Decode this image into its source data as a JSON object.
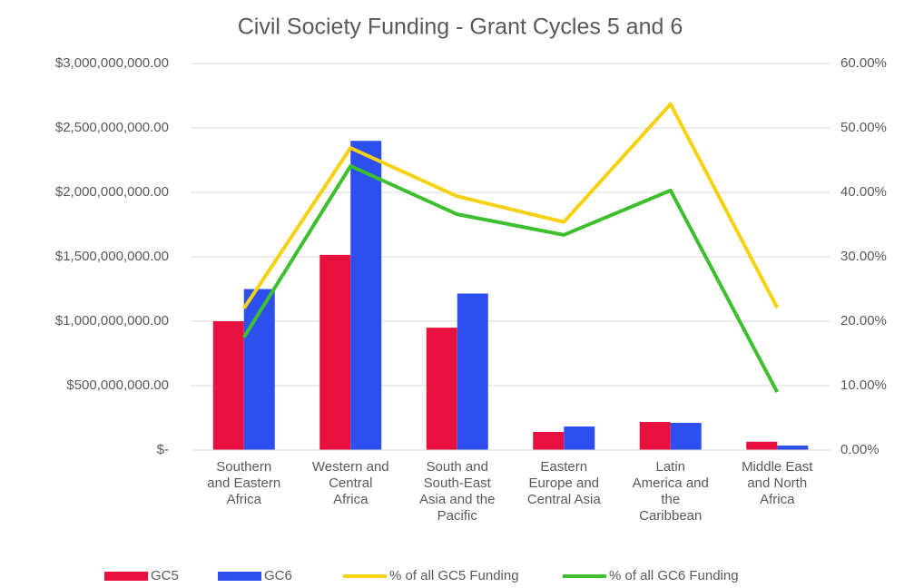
{
  "chart_data": {
    "type": "bar_line",
    "title": "Civil Society Funding - Grant Cycles 5 and 6",
    "categories": [
      "Southern and Eastern Africa",
      "Western and Central Africa",
      "South and South-East Asia and the Pacific",
      "Eastern Europe and Central Asia",
      "Latin America and the Caribbean",
      "Middle East and North Africa"
    ],
    "series": [
      {
        "name": "GC5",
        "type": "bar",
        "color": "#e8103f",
        "values": [
          1000000000,
          1515000000,
          950000000,
          141000000,
          218000000,
          65000000
        ]
      },
      {
        "name": "GC6",
        "type": "bar",
        "color": "#2e4ff0",
        "values": [
          1250000000,
          2400000000,
          1215000000,
          183000000,
          211000000,
          35000000
        ]
      },
      {
        "name": "% of all GC5 Funding",
        "type": "line",
        "axis": "y2",
        "color": "#f5d10f",
        "values": [
          22.0,
          46.9,
          39.4,
          35.4,
          53.7,
          22.1
        ]
      },
      {
        "name": "% of all GC6 Funding",
        "type": "line",
        "axis": "y2",
        "color": "#3dbf2f",
        "values": [
          17.5,
          44.1,
          36.6,
          33.4,
          40.3,
          9.0
        ]
      }
    ],
    "ylim": [
      0,
      3000000000
    ],
    "yticks": [
      {
        "value": 0,
        "label": "$-"
      },
      {
        "value": 500000000,
        "label": "$500,000,000.00"
      },
      {
        "value": 1000000000,
        "label": "$1,000,000,000.00"
      },
      {
        "value": 1500000000,
        "label": "$1,500,000,000.00"
      },
      {
        "value": 2000000000,
        "label": "$2,000,000,000.00"
      },
      {
        "value": 2500000000,
        "label": "$2,500,000,000.00"
      },
      {
        "value": 3000000000,
        "label": "$3,000,000,000.00"
      }
    ],
    "y2lim": [
      0,
      60
    ],
    "y2ticks": [
      {
        "value": 0,
        "label": "0.00%"
      },
      {
        "value": 10,
        "label": "10.00%"
      },
      {
        "value": 20,
        "label": "20.00%"
      },
      {
        "value": 30,
        "label": "30.00%"
      },
      {
        "value": 40,
        "label": "40.00%"
      },
      {
        "value": 50,
        "label": "50.00%"
      },
      {
        "value": 60,
        "label": "60.00%"
      }
    ],
    "grid": true,
    "legend": "bottom"
  }
}
